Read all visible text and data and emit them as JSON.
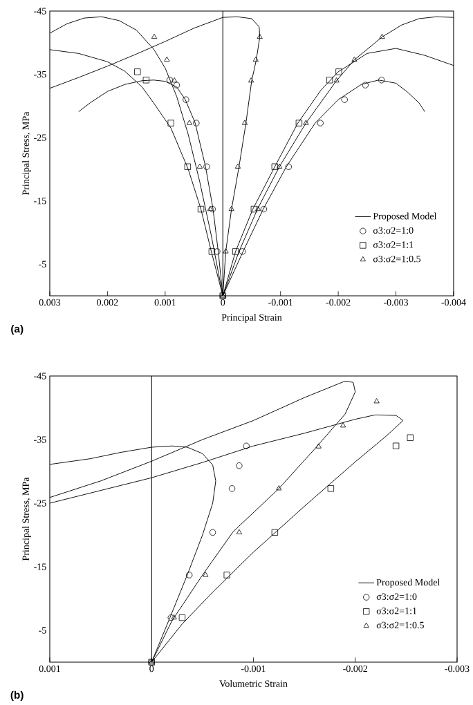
{
  "chart_data": [
    {
      "type": "line",
      "xlabel": "Principal Strain",
      "ylabel": "Principal Stress, MPa",
      "annotations": [
        "(a)"
      ],
      "xlim": [
        0.003,
        -0.004
      ],
      "ylim": [
        0,
        -45
      ],
      "xticks": [
        0.003,
        0.002,
        0.001,
        0,
        -0.001,
        -0.002,
        -0.003,
        -0.004
      ],
      "yticks": [
        -45,
        -35,
        -25,
        -15,
        -5
      ],
      "legend": "bottom right",
      "series": [
        {
          "name": "Proposed Model",
          "color": "#000000",
          "x": [
            0.0025,
            0.0023,
            0.002,
            0.0017,
            0.0014,
            0.0012,
            0.001,
            0.0008,
            0.00065,
            0.00048,
            0.0003,
            0.00017,
            8e-05,
            0
          ],
          "values": [
            -29.1,
            -30.5,
            -32.3,
            -33.4,
            -34.0,
            -34.1,
            -33.9,
            -33.0,
            -31,
            -27.3,
            -20.4,
            -13.7,
            -7,
            0
          ]
        },
        {
          "color": "#000000",
          "x": [
            0,
            -0.00035,
            -0.0007,
            -0.0011,
            -0.0016,
            -0.002,
            -0.0024,
            -0.0027,
            -0.003,
            -0.0032,
            -0.0034,
            -0.0035
          ],
          "values": [
            0,
            -7,
            -13.7,
            -20.4,
            -27.3,
            -31,
            -33.4,
            -34.1,
            -33.6,
            -32.2,
            -30.5,
            -29.1
          ]
        },
        {
          "color": "#000000",
          "x": [
            0.003,
            0.0025,
            0.002,
            0.0017,
            0.0014,
            0.0012,
            0.0009,
            0.0006,
            0.00038,
            0.0002,
            0
          ],
          "values": [
            -38.9,
            -38.3,
            -37.0,
            -35.5,
            -33.0,
            -30.5,
            -26.5,
            -20,
            -13.7,
            -7,
            0
          ]
        },
        {
          "color": "#000000",
          "x": [
            0,
            -0.00022,
            -0.00052,
            -0.0009,
            -0.0013,
            -0.0017,
            -0.002,
            -0.0025,
            -0.003,
            -0.0035,
            -0.004
          ],
          "values": [
            0,
            -7,
            -13.7,
            -20.4,
            -27.3,
            -32.5,
            -35.4,
            -38.3,
            -39.1,
            -38,
            -36.4
          ]
        },
        {
          "color": "#000000",
          "x": [
            0.003,
            0.0027,
            0.0024,
            0.0021,
            0.0018,
            0.0015,
            0.0012,
            0.001,
            0.0008,
            0.0006,
            0.0004,
            0.0002,
            0
          ],
          "values": [
            -41.5,
            -43,
            -43.9,
            -44.1,
            -43.5,
            -42,
            -39,
            -36,
            -31.5,
            -25.5,
            -18,
            -9.5,
            0
          ]
        },
        {
          "color": "#000000",
          "x": [
            0,
            -5e-05,
            -0.00015,
            -0.00028,
            -0.0004,
            -0.0005,
            -0.00058,
            -0.00064,
            -0.00063,
            -0.0005,
            -0.00025,
            0,
            0.0005,
            0.001,
            0.0015,
            0.002,
            0.0025,
            0.003
          ],
          "values": [
            0,
            -7,
            -13.7,
            -20.4,
            -27.3,
            -34,
            -37.3,
            -40.9,
            -42.5,
            -43.8,
            -44.1,
            -44,
            -42.3,
            -40.2,
            -38.2,
            -36.3,
            -34.5,
            -32.8
          ]
        },
        {
          "color": "#000000",
          "x": [
            0,
            -0.00028,
            -0.0006,
            -0.00098,
            -0.00144,
            -0.00197,
            -0.00228,
            -0.00276,
            -0.0031,
            -0.0034,
            -0.0037,
            -0.004
          ],
          "values": [
            0,
            -7,
            -13.7,
            -20.4,
            -27.3,
            -34,
            -37.3,
            -40.9,
            -42.8,
            -43.8,
            -44.1,
            -44
          ]
        },
        {
          "name": "σ3:σ2=1:0",
          "type": "scatter",
          "marker": "circle",
          "color": "#000000",
          "x": [
            0,
            0.0001,
            0.00018,
            0.00028,
            0.00046,
            0.00064,
            0.0008,
            0.00092,
            -0.00034,
            -0.00071,
            -0.00114,
            -0.00169,
            -0.00211,
            -0.00247,
            -0.00275
          ],
          "values": [
            0,
            -7,
            -13.7,
            -20.4,
            -27.3,
            -31,
            -33.3,
            -34.1,
            -7,
            -13.7,
            -20.4,
            -27.3,
            -31,
            -33.3,
            -34.1
          ]
        },
        {
          "name": "σ3:σ2=1:1",
          "type": "scatter",
          "marker": "square",
          "color": "#000000",
          "x": [
            0,
            0.00019,
            0.00038,
            0.00061,
            0.0009,
            0.00133,
            0.00148,
            -0.00022,
            -0.00054,
            -0.0009,
            -0.00132,
            -0.00185,
            -0.00201
          ],
          "values": [
            0,
            -7,
            -13.7,
            -20.4,
            -27.3,
            -34.1,
            -35.4,
            -7,
            -13.7,
            -20.4,
            -27.3,
            -34.1,
            -35.4
          ]
        },
        {
          "name": "σ3:σ2=1:0.5",
          "type": "scatter",
          "marker": "triangle",
          "color": "#000000",
          "x": [
            0,
            0.00022,
            0.0004,
            0.00058,
            0.00084,
            0.00097,
            0.00119,
            -5e-05,
            -0.00015,
            -0.00026,
            -0.00038,
            -0.00049,
            -0.00057,
            -0.00064,
            -0.00061,
            -0.00098,
            -0.00144,
            -0.00197,
            -0.00228,
            -0.00276
          ],
          "values": [
            0,
            -13.7,
            -20.4,
            -27.3,
            -34,
            -37.3,
            -40.9,
            -7,
            -13.7,
            -20.4,
            -27.3,
            -34,
            -37.3,
            -40.9,
            -13.7,
            -20.4,
            -27.3,
            -34,
            -37.3,
            -40.9
          ]
        }
      ]
    },
    {
      "type": "line",
      "xlabel": "Volumetric Strain",
      "ylabel": "Principal Stress, MPa",
      "annotations": [
        "(b)"
      ],
      "xlim": [
        0.001,
        -0.003
      ],
      "ylim": [
        0,
        -45
      ],
      "xticks": [
        0.001,
        0,
        -0.001,
        -0.002,
        -0.003
      ],
      "yticks": [
        -45,
        -35,
        -25,
        -15,
        -5
      ],
      "legend": "bottom right",
      "series": [
        {
          "name": "Proposed Model",
          "color": "#000000",
          "x": [
            0,
            -0.00018,
            -0.00035,
            -0.0005,
            -0.0006,
            -0.00063,
            -0.0006,
            -0.0005,
            -0.00035,
            -0.0002,
            0,
            0.0003,
            0.0006,
            0.001
          ],
          "values": [
            0,
            -7,
            -13.7,
            -20,
            -25,
            -28.5,
            -31,
            -32.8,
            -33.8,
            -34,
            -33.8,
            -33,
            -32,
            -31.1
          ]
        },
        {
          "color": "#000000",
          "x": [
            0,
            -0.0002,
            -0.0005,
            -0.0008,
            -0.00125,
            -0.0016,
            -0.0019,
            -0.002,
            -0.00198,
            -0.0019,
            -0.0015,
            -0.001,
            -0.0005,
            0,
            0.0005,
            0.001
          ],
          "values": [
            0,
            -6.5,
            -13.7,
            -20.5,
            -27.3,
            -33.5,
            -39,
            -42.5,
            -44,
            -44.2,
            -41.6,
            -38,
            -35,
            -31.6,
            -28.5,
            -25.9
          ]
        },
        {
          "color": "#000000",
          "x": [
            0,
            -0.0003,
            -0.0006,
            -0.001,
            -0.0015,
            -0.002,
            -0.0023,
            -0.00247,
            -0.0024,
            -0.0022,
            -0.002,
            -0.0015,
            -0.001,
            -0.0005,
            0,
            0.0005,
            0.001
          ],
          "values": [
            0,
            -6,
            -11,
            -17.3,
            -24.5,
            -31.5,
            -35.5,
            -38,
            -38.8,
            -38.9,
            -38.2,
            -36,
            -34,
            -31.4,
            -29,
            -27,
            -25
          ]
        },
        {
          "name": "σ3:σ2=1:0",
          "type": "scatter",
          "marker": "circle",
          "color": "#000000",
          "x": [
            0,
            -0.00019,
            -0.00037,
            -0.0006,
            -0.00079,
            -0.00086,
            -0.00093
          ],
          "values": [
            0,
            -7,
            -13.7,
            -20.4,
            -27.3,
            -30.9,
            -34
          ]
        },
        {
          "name": "σ3:σ2=1:1",
          "type": "scatter",
          "marker": "square",
          "color": "#000000",
          "x": [
            0,
            -0.0003,
            -0.00074,
            -0.00121,
            -0.00176,
            -0.0024,
            -0.00254
          ],
          "values": [
            0,
            -7,
            -13.7,
            -20.4,
            -27.3,
            -34,
            -35.3
          ]
        },
        {
          "name": "σ3:σ2=1:0.5",
          "type": "scatter",
          "marker": "triangle",
          "color": "#000000",
          "x": [
            0,
            -0.00022,
            -0.00053,
            -0.00086,
            -0.00125,
            -0.00164,
            -0.00188,
            -0.00221
          ],
          "values": [
            0,
            -7,
            -13.7,
            -20.4,
            -27.3,
            -33.9,
            -37.2,
            -41
          ]
        }
      ]
    }
  ]
}
